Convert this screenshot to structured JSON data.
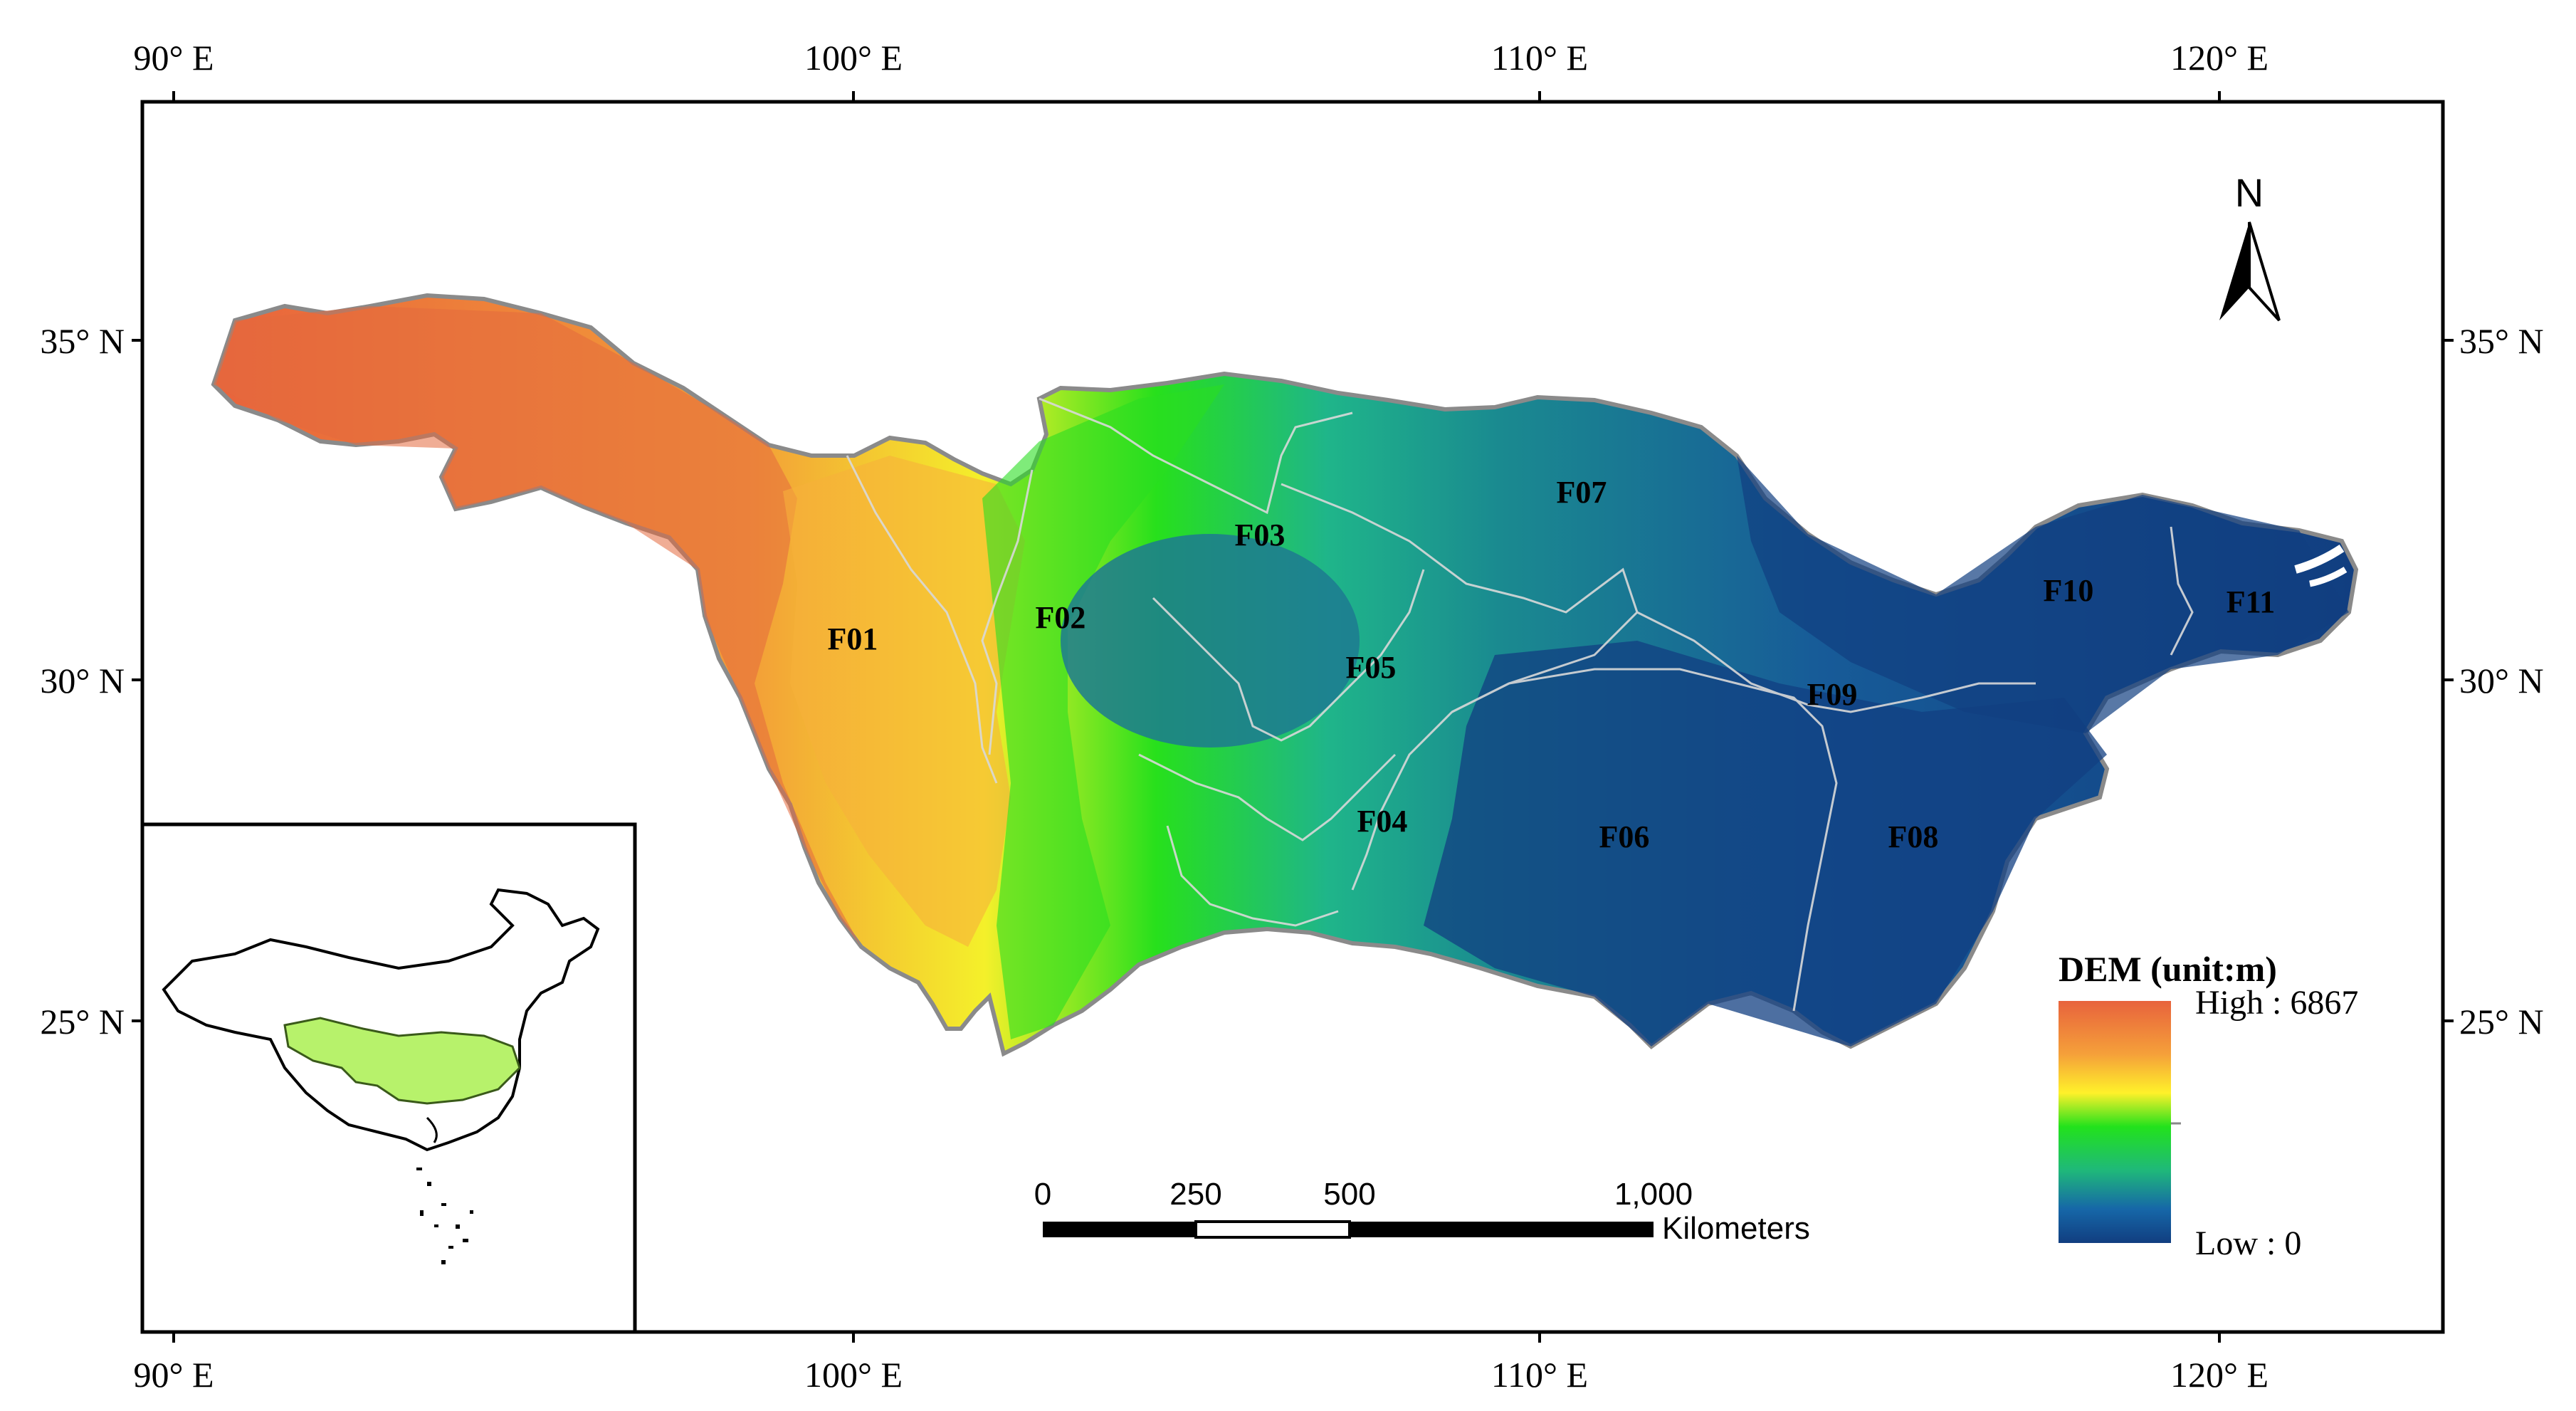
{
  "map": {
    "axes": {
      "top_labels": [
        "90° E",
        "100° E",
        "110° E",
        "120° E"
      ],
      "bottom_labels": [
        "90° E",
        "100° E",
        "110° E",
        "120° E"
      ],
      "left_labels": [
        "35° N",
        "30° N",
        "25° N"
      ],
      "right_labels": [
        "35° N",
        "30° N",
        "25° N"
      ]
    },
    "regions": [
      {
        "id": "F01",
        "label": "F01"
      },
      {
        "id": "F02",
        "label": "F02"
      },
      {
        "id": "F03",
        "label": "F03"
      },
      {
        "id": "F04",
        "label": "F04"
      },
      {
        "id": "F05",
        "label": "F05"
      },
      {
        "id": "F06",
        "label": "F06"
      },
      {
        "id": "F07",
        "label": "F07"
      },
      {
        "id": "F08",
        "label": "F08"
      },
      {
        "id": "F09",
        "label": "F09"
      },
      {
        "id": "F10",
        "label": "F10"
      },
      {
        "id": "F11",
        "label": "F11"
      }
    ],
    "north_arrow": {
      "label": "N",
      "icon": "north-arrow-icon"
    },
    "legend": {
      "title": "DEM (unit:m)",
      "high_label": "High : 6867",
      "low_label": "Low : 0",
      "high_value": 6867,
      "low_value": 0,
      "colors": [
        "#e8633c",
        "#f5a03a",
        "#fff12a",
        "#22e21c",
        "#1fb87a",
        "#1667a8",
        "#113e80"
      ]
    },
    "scale_bar": {
      "ticks": [
        "0",
        "250",
        "500",
        "1,000"
      ],
      "unit": "Kilometers"
    },
    "inset": {
      "name": "china-inset-map",
      "highlight_color": "#b7f26b"
    }
  }
}
